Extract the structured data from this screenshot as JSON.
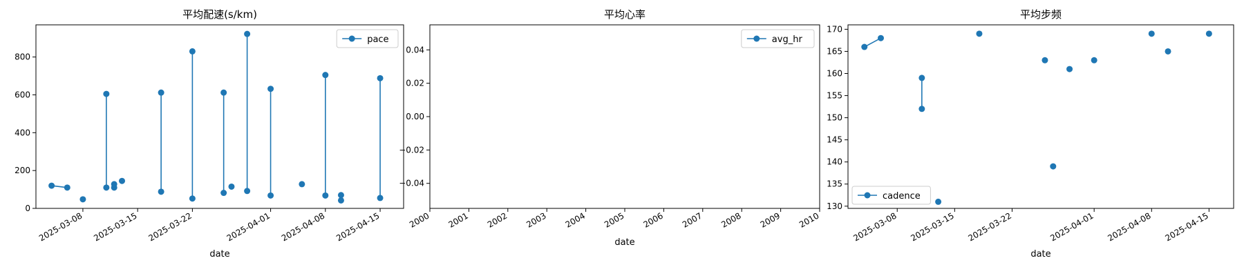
{
  "colors": {
    "series": "#1f77b4",
    "axis": "#000000",
    "legend_border": "#cccccc"
  },
  "chart_data": [
    {
      "type": "line",
      "title": "平均配速(s/km)",
      "xlabel": "date",
      "ylabel": "",
      "legend": {
        "placement": "top-right",
        "entries": [
          "pace"
        ]
      },
      "grid": false,
      "x_axis": {
        "kind": "date",
        "range": [
          "2025-03-02",
          "2025-04-18"
        ],
        "tick_labels": [
          "2025-03-08",
          "2025-03-15",
          "2025-03-22",
          "2025-04-01",
          "2025-04-08",
          "2025-04-15"
        ]
      },
      "y_axis": {
        "range": [
          0,
          970
        ],
        "tick_labels": [
          "0",
          "200",
          "400",
          "600",
          "800"
        ]
      },
      "series": [
        {
          "name": "pace",
          "points": [
            {
              "x": "2025-03-04",
              "y": 120
            },
            {
              "x": "2025-03-06",
              "y": 110
            },
            {
              "x": "2025-03-08",
              "y": 48
            },
            {
              "x": "2025-03-11",
              "y": 110
            },
            {
              "x": "2025-03-11",
              "y": 605
            },
            {
              "x": "2025-03-12",
              "y": 110
            },
            {
              "x": "2025-03-12",
              "y": 128
            },
            {
              "x": "2025-03-13",
              "y": 145
            },
            {
              "x": "2025-03-18",
              "y": 88
            },
            {
              "x": "2025-03-18",
              "y": 612
            },
            {
              "x": "2025-03-22",
              "y": 52
            },
            {
              "x": "2025-03-22",
              "y": 830
            },
            {
              "x": "2025-03-26",
              "y": 82
            },
            {
              "x": "2025-03-26",
              "y": 612
            },
            {
              "x": "2025-03-27",
              "y": 115
            },
            {
              "x": "2025-03-29",
              "y": 92
            },
            {
              "x": "2025-03-29",
              "y": 922
            },
            {
              "x": "2025-04-01",
              "y": 68
            },
            {
              "x": "2025-04-01",
              "y": 632
            },
            {
              "x": "2025-04-05",
              "y": 128
            },
            {
              "x": "2025-04-08",
              "y": 68
            },
            {
              "x": "2025-04-08",
              "y": 705
            },
            {
              "x": "2025-04-10",
              "y": 70
            },
            {
              "x": "2025-04-10",
              "y": 42
            },
            {
              "x": "2025-04-15",
              "y": 55
            },
            {
              "x": "2025-04-15",
              "y": 688
            }
          ],
          "connections": [
            [
              0,
              1
            ],
            [
              3,
              4
            ],
            [
              5,
              6
            ],
            [
              8,
              9
            ],
            [
              10,
              11
            ],
            [
              12,
              13
            ],
            [
              15,
              16
            ],
            [
              17,
              18
            ],
            [
              20,
              21
            ],
            [
              22,
              23
            ],
            [
              24,
              25
            ]
          ]
        }
      ]
    },
    {
      "type": "line",
      "title": "平均心率",
      "xlabel": "date",
      "ylabel": "",
      "legend": {
        "placement": "top-right",
        "entries": [
          "avg_hr"
        ]
      },
      "grid": false,
      "x_axis": {
        "kind": "year",
        "range": [
          2000,
          2010
        ],
        "tick_labels": [
          "2000",
          "2001",
          "2002",
          "2003",
          "2004",
          "2005",
          "2006",
          "2007",
          "2008",
          "2009",
          "2010"
        ]
      },
      "y_axis": {
        "range": [
          -0.055,
          0.055
        ],
        "tick_labels": [
          "0.04",
          "0.02",
          "0.00",
          "−0.02",
          "−0.04"
        ]
      },
      "series": [
        {
          "name": "avg_hr",
          "points": [],
          "connections": []
        }
      ]
    },
    {
      "type": "line",
      "title": "平均步频",
      "xlabel": "date",
      "ylabel": "",
      "legend": {
        "placement": "bottom-left",
        "entries": [
          "cadence"
        ]
      },
      "grid": false,
      "x_axis": {
        "kind": "date",
        "range": [
          "2025-03-02",
          "2025-04-18"
        ],
        "tick_labels": [
          "2025-03-08",
          "2025-03-15",
          "2025-03-22",
          "2025-04-01",
          "2025-04-08",
          "2025-04-15"
        ]
      },
      "y_axis": {
        "range": [
          129.5,
          171
        ],
        "tick_labels": [
          "130",
          "135",
          "140",
          "145",
          "150",
          "155",
          "160",
          "165",
          "170"
        ]
      },
      "series": [
        {
          "name": "cadence",
          "points": [
            {
              "x": "2025-03-04",
              "y": 166
            },
            {
              "x": "2025-03-06",
              "y": 168
            },
            {
              "x": "2025-03-11",
              "y": 159
            },
            {
              "x": "2025-03-11",
              "y": 152
            },
            {
              "x": "2025-03-13",
              "y": 131
            },
            {
              "x": "2025-03-18",
              "y": 169
            },
            {
              "x": "2025-03-26",
              "y": 163
            },
            {
              "x": "2025-03-27",
              "y": 139
            },
            {
              "x": "2025-03-29",
              "y": 161
            },
            {
              "x": "2025-04-01",
              "y": 163
            },
            {
              "x": "2025-04-08",
              "y": 169
            },
            {
              "x": "2025-04-10",
              "y": 165
            },
            {
              "x": "2025-04-15",
              "y": 169
            }
          ],
          "connections": [
            [
              0,
              1
            ],
            [
              2,
              3
            ]
          ]
        }
      ]
    }
  ]
}
